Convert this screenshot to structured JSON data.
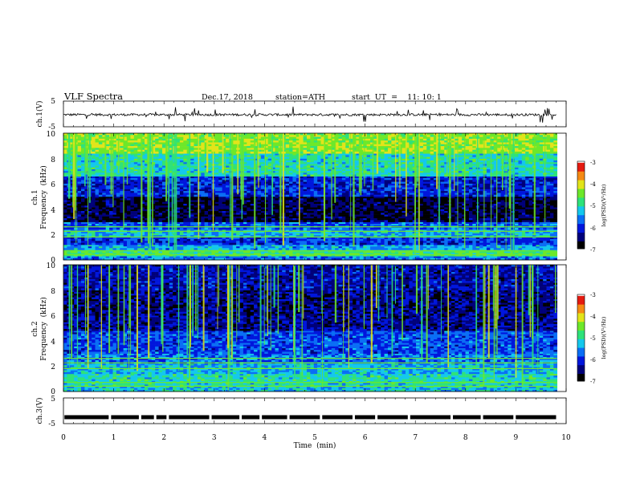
{
  "header": {
    "title": "VLF  Spectra",
    "date": "Dec.17, 2018",
    "station": "station=ATH",
    "start": "start  UT  =    11: 10: 1"
  },
  "colors": {
    "colormap": [
      "#000000",
      "#00007a",
      "#0016dc",
      "#0a6ef5",
      "#14c8ec",
      "#2ee27a",
      "#6de82a",
      "#e2e41a",
      "#f58a14",
      "#e41a10",
      "#ffffff"
    ]
  },
  "chart_data": [
    {
      "name": "ch1-waveform",
      "type": "line",
      "ylabel": "ch.1(V)",
      "yticks": [
        "5",
        "-5"
      ],
      "ylim": [
        -5,
        5
      ],
      "xlim": [
        0,
        10
      ],
      "baseline": -0.3,
      "data_end": 9.8
    },
    {
      "name": "ch1-spectrogram",
      "type": "heatmap",
      "ylabel": "ch.1\nFrequency  (kHz)",
      "ylabel_lines": [
        "ch.1",
        "Frequency  (kHz)"
      ],
      "yticks": [
        "10",
        "8",
        "6",
        "4",
        "2",
        "0"
      ],
      "ylim": [
        0,
        10
      ],
      "xlim": [
        0,
        10
      ],
      "colorbar": {
        "label": "log(PSD)(V²/Hz)",
        "ticks": [
          "-3",
          "-4",
          "-5",
          "-6",
          "-7"
        ],
        "range": [
          -7,
          -3
        ]
      },
      "bands": [
        {
          "f": [
            0,
            0.3
          ],
          "level": -5.6
        },
        {
          "f": [
            0.3,
            0.8
          ],
          "level": -4.7
        },
        {
          "f": [
            0.8,
            1.2
          ],
          "level": -5.4
        },
        {
          "f": [
            1.2,
            1.8
          ],
          "level": -5.9
        },
        {
          "f": [
            1.8,
            2.4
          ],
          "level": -5.3
        },
        {
          "f": [
            2.4,
            3.0
          ],
          "level": -5.7
        },
        {
          "f": [
            3.0,
            5.0
          ],
          "level": -6.6
        },
        {
          "f": [
            5.0,
            6.6
          ],
          "level": -6.0
        },
        {
          "f": [
            6.6,
            8.4
          ],
          "level": -5.0
        },
        {
          "f": [
            8.4,
            10
          ],
          "level": -4.3
        }
      ]
    },
    {
      "name": "ch2-spectrogram",
      "type": "heatmap",
      "ylabel": "ch.2\nFrequency  (kHz)",
      "ylabel_lines": [
        "ch.2",
        "Frequency  (kHz)"
      ],
      "yticks": [
        "10",
        "8",
        "6",
        "4",
        "2",
        "0"
      ],
      "ylim": [
        0,
        10
      ],
      "xlim": [
        0,
        10
      ],
      "colorbar": {
        "label": "log(PSD)(V²/Hz)",
        "ticks": [
          "-3",
          "-4",
          "-5",
          "-6",
          "-7"
        ],
        "range": [
          -7,
          -3
        ]
      },
      "bands": [
        {
          "f": [
            0,
            0.4
          ],
          "level": -5.2
        },
        {
          "f": [
            0.4,
            1.4
          ],
          "level": -5.0
        },
        {
          "f": [
            1.4,
            2.2
          ],
          "level": -5.3
        },
        {
          "f": [
            2.2,
            3.0
          ],
          "level": -5.6
        },
        {
          "f": [
            3.0,
            4.8
          ],
          "level": -5.8
        },
        {
          "f": [
            4.8,
            6.0
          ],
          "level": -6.3
        },
        {
          "f": [
            6.0,
            8.0
          ],
          "level": -6.4
        },
        {
          "f": [
            8.0,
            10
          ],
          "level": -6.2
        }
      ]
    },
    {
      "name": "ch3-waveform",
      "type": "line",
      "ylabel": "ch.3(V)",
      "yticks": [
        "5",
        "-5"
      ],
      "ylim": [
        -5,
        5
      ],
      "xlim": [
        0,
        10
      ],
      "baseline": -2.5,
      "data_end": 9.8,
      "xlabel": "Time  (min)",
      "xticks": [
        "0",
        "1",
        "2",
        "3",
        "4",
        "5",
        "6",
        "7",
        "8",
        "9",
        "10"
      ]
    }
  ]
}
